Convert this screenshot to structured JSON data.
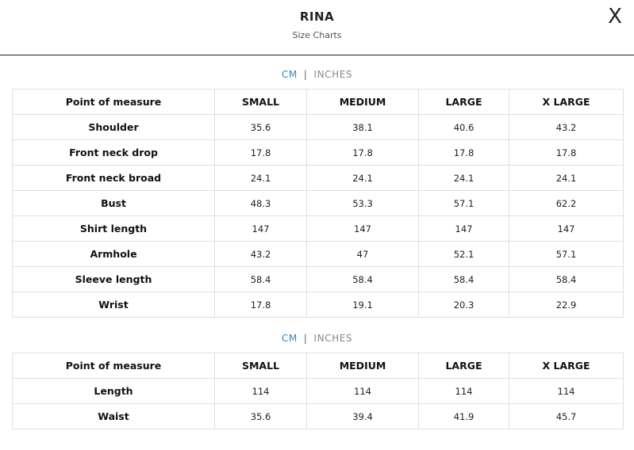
{
  "header": {
    "title": "RINA",
    "subtitle": "Size Charts",
    "close_icon": "close-icon",
    "close_glyph": "X"
  },
  "unit_toggle": {
    "cm_label": "CM",
    "separator": "|",
    "inches_label": "INCHES",
    "active": "CM",
    "active_color": "#2a88c8"
  },
  "tables": [
    {
      "columns": [
        "Point of measure",
        "SMALL",
        "MEDIUM",
        "LARGE",
        "X LARGE"
      ],
      "rows": [
        {
          "label": "Shoulder",
          "values": [
            "35.6",
            "38.1",
            "40.6",
            "43.2"
          ]
        },
        {
          "label": "Front neck drop",
          "values": [
            "17.8",
            "17.8",
            "17.8",
            "17.8"
          ]
        },
        {
          "label": "Front neck broad",
          "values": [
            "24.1",
            "24.1",
            "24.1",
            "24.1"
          ]
        },
        {
          "label": "Bust",
          "values": [
            "48.3",
            "53.3",
            "57.1",
            "62.2"
          ]
        },
        {
          "label": "Shirt length",
          "values": [
            "147",
            "147",
            "147",
            "147"
          ]
        },
        {
          "label": "Armhole",
          "values": [
            "43.2",
            "47",
            "52.1",
            "57.1"
          ]
        },
        {
          "label": "Sleeve length",
          "values": [
            "58.4",
            "58.4",
            "58.4",
            "58.4"
          ]
        },
        {
          "label": "Wrist",
          "values": [
            "17.8",
            "19.1",
            "20.3",
            "22.9"
          ]
        }
      ]
    },
    {
      "columns": [
        "Point of measure",
        "SMALL",
        "MEDIUM",
        "LARGE",
        "X LARGE"
      ],
      "rows": [
        {
          "label": "Length",
          "values": [
            "114",
            "114",
            "114",
            "114"
          ]
        },
        {
          "label": "Waist",
          "values": [
            "35.6",
            "39.4",
            "41.9",
            "45.7"
          ]
        }
      ]
    }
  ]
}
